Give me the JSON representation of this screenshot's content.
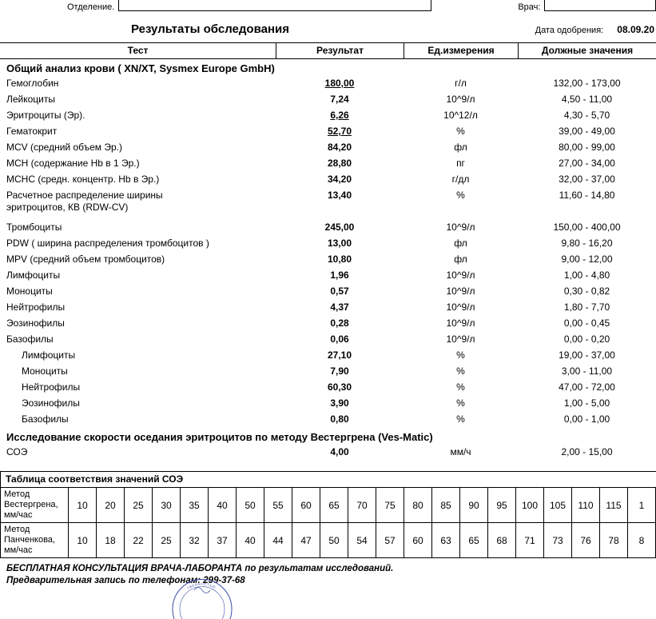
{
  "header": {
    "department_label": "Отделение.",
    "department_value": "",
    "doctor_label": "Врач:",
    "doctor_value": "",
    "title": "Результаты обследования",
    "approval_date_label": "Дата одобрения:",
    "approval_date_value": "08.09.20"
  },
  "results_table": {
    "columns": [
      "Тест",
      "Результат",
      "Ед.измерения",
      "Должные значения"
    ],
    "sections": [
      {
        "title": "Общий анализ крови ( XN/XT, Sysmex  Europe GmbH)",
        "rows": [
          {
            "test": "Гемоглобин",
            "result": "180,00",
            "flag": true,
            "units": "г/л",
            "reference": "132,00 - 173,00"
          },
          {
            "test": "Лейкоциты",
            "result": "7,24",
            "units": "10^9/л",
            "reference": "4,50 - 11,00"
          },
          {
            "test": "Эритроциты (Эр).",
            "result": "6,26",
            "flag": true,
            "units": "10^12/л",
            "reference": "4,30 - 5,70"
          },
          {
            "test": "Гематокрит",
            "result": "52,70",
            "flag": true,
            "units": "%",
            "reference": "39,00 - 49,00"
          },
          {
            "test": "MCV (средний объем Эр.)",
            "result": "84,20",
            "units": "фл",
            "reference": "80,00 - 99,00"
          },
          {
            "test": "MCH (содержание Hb в 1 Эр.)",
            "result": "28,80",
            "units": "пг",
            "reference": "27,00 - 34,00"
          },
          {
            "test": "MCHC (средн. концентр. Hb в Эр.)",
            "result": "34,20",
            "units": "г/дл",
            "reference": "32,00 - 37,00"
          },
          {
            "test": "Расчетное распределение ширины\nэритроцитов, КВ (RDW-CV)",
            "result": "13,40",
            "units": "%",
            "reference": "11,60 - 14,80"
          },
          {
            "test": "Тромбоциты",
            "result": "245,00",
            "units": "10^9/л",
            "reference": "150,00 - 400,00",
            "gap": true
          },
          {
            "test": "PDW ( ширина распределения тромбоцитов )",
            "result": "13,00",
            "units": "фл",
            "reference": "9,80 - 16,20"
          },
          {
            "test": "MPV (средний объем тромбоцитов)",
            "result": "10,80",
            "units": "фл",
            "reference": "9,00 - 12,00"
          },
          {
            "test": "Лимфоциты",
            "result": "1,96",
            "units": "10^9/л",
            "reference": "1,00 - 4,80"
          },
          {
            "test": "Моноциты",
            "result": "0,57",
            "units": "10^9/л",
            "reference": "0,30 - 0,82"
          },
          {
            "test": "Нейтрофилы",
            "result": "4,37",
            "units": "10^9/л",
            "reference": "1,80 - 7,70"
          },
          {
            "test": "Эозинофилы",
            "result": "0,28",
            "units": "10^9/л",
            "reference": "0,00 - 0,45"
          },
          {
            "test": "Базофилы",
            "result": "0,06",
            "units": "10^9/л",
            "reference": "0,00 - 0,20"
          },
          {
            "test": "Лимфоциты",
            "indent": true,
            "result": "27,10",
            "units": "%",
            "reference": "19,00 - 37,00"
          },
          {
            "test": "Моноциты",
            "indent": true,
            "result": "7,90",
            "units": "%",
            "reference": "3,00 - 11,00"
          },
          {
            "test": "Нейтрофилы",
            "indent": true,
            "result": "60,30",
            "units": "%",
            "reference": "47,00 - 72,00"
          },
          {
            "test": "Эозинофилы",
            "indent": true,
            "result": "3,90",
            "units": "%",
            "reference": "1,00 - 5,00"
          },
          {
            "test": "Базофилы",
            "indent": true,
            "result": "0,80",
            "units": "%",
            "reference": "0,00 - 1,00"
          }
        ]
      },
      {
        "title": "Исследование скорости оседания эритроцитов по методу Вестергрена (Ves-Matic)",
        "rows": [
          {
            "test": "СОЭ",
            "result": "4,00",
            "units": "мм/ч",
            "reference": "2,00 - 15,00"
          }
        ]
      }
    ]
  },
  "soe_table": {
    "title": "Таблица соответствия значений СОЭ",
    "rows": [
      {
        "label": "Метод Вестергрена,\nмм/час",
        "values": [
          "10",
          "20",
          "25",
          "30",
          "35",
          "40",
          "50",
          "55",
          "60",
          "65",
          "70",
          "75",
          "80",
          "85",
          "90",
          "95",
          "100",
          "105",
          "110",
          "115",
          "1"
        ]
      },
      {
        "label": "Метод Панченкова,\nмм/час",
        "values": [
          "10",
          "18",
          "22",
          "25",
          "32",
          "37",
          "40",
          "44",
          "47",
          "50",
          "54",
          "57",
          "60",
          "63",
          "65",
          "68",
          "71",
          "73",
          "76",
          "78",
          "8"
        ]
      }
    ]
  },
  "footer": {
    "consultation": "БЕСПЛАТНАЯ КОНСУЛЬТАЦИЯ ВРАЧА-ЛАБОРАНТА по результатам исследований.",
    "booking": "Предварительная запись по телефонам: 299-37-68"
  },
  "stamp": {
    "color": "#3b4da6",
    "text_visible": "ТВЕННОСТЬЮ"
  }
}
